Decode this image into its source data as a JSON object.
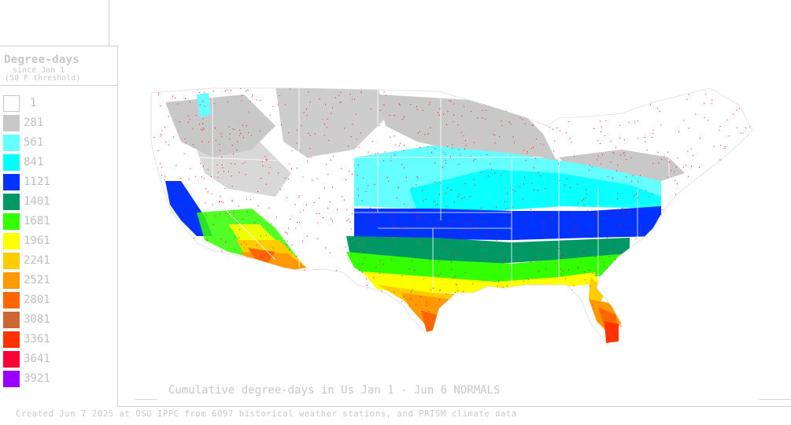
{
  "legend": {
    "title": "Degree-days",
    "subtitle_line1": "since Jan 1",
    "subtitle_line2": "(50 F threshold)",
    "items": [
      {
        "label": "1",
        "color": "#ffffff"
      },
      {
        "label": "281",
        "color": "#c8c8c8"
      },
      {
        "label": "561",
        "color": "#66ffff"
      },
      {
        "label": "841",
        "color": "#00ffff"
      },
      {
        "label": "1121",
        "color": "#0033ff"
      },
      {
        "label": "1401",
        "color": "#009966"
      },
      {
        "label": "1681",
        "color": "#33ff00"
      },
      {
        "label": "1961",
        "color": "#ffff00"
      },
      {
        "label": "2241",
        "color": "#ffcc00"
      },
      {
        "label": "2521",
        "color": "#ff9900"
      },
      {
        "label": "2801",
        "color": "#ff6600"
      },
      {
        "label": "3081",
        "color": "#cc6633"
      },
      {
        "label": "3361",
        "color": "#ff3300"
      },
      {
        "label": "3641",
        "color": "#ff0033"
      },
      {
        "label": "3921",
        "color": "#9900ff"
      }
    ]
  },
  "map": {
    "region": "Contiguous United States",
    "station_dot_color": "#ff0000",
    "border_color": "#ffffff"
  },
  "caption": "Cumulative degree-days in Us  Jan 1 - Jun 6 NORMALS",
  "credit": "Created Jun 7 2025 at OSU IPPC from 6097 historical weather stations, and PRISM climate data"
}
